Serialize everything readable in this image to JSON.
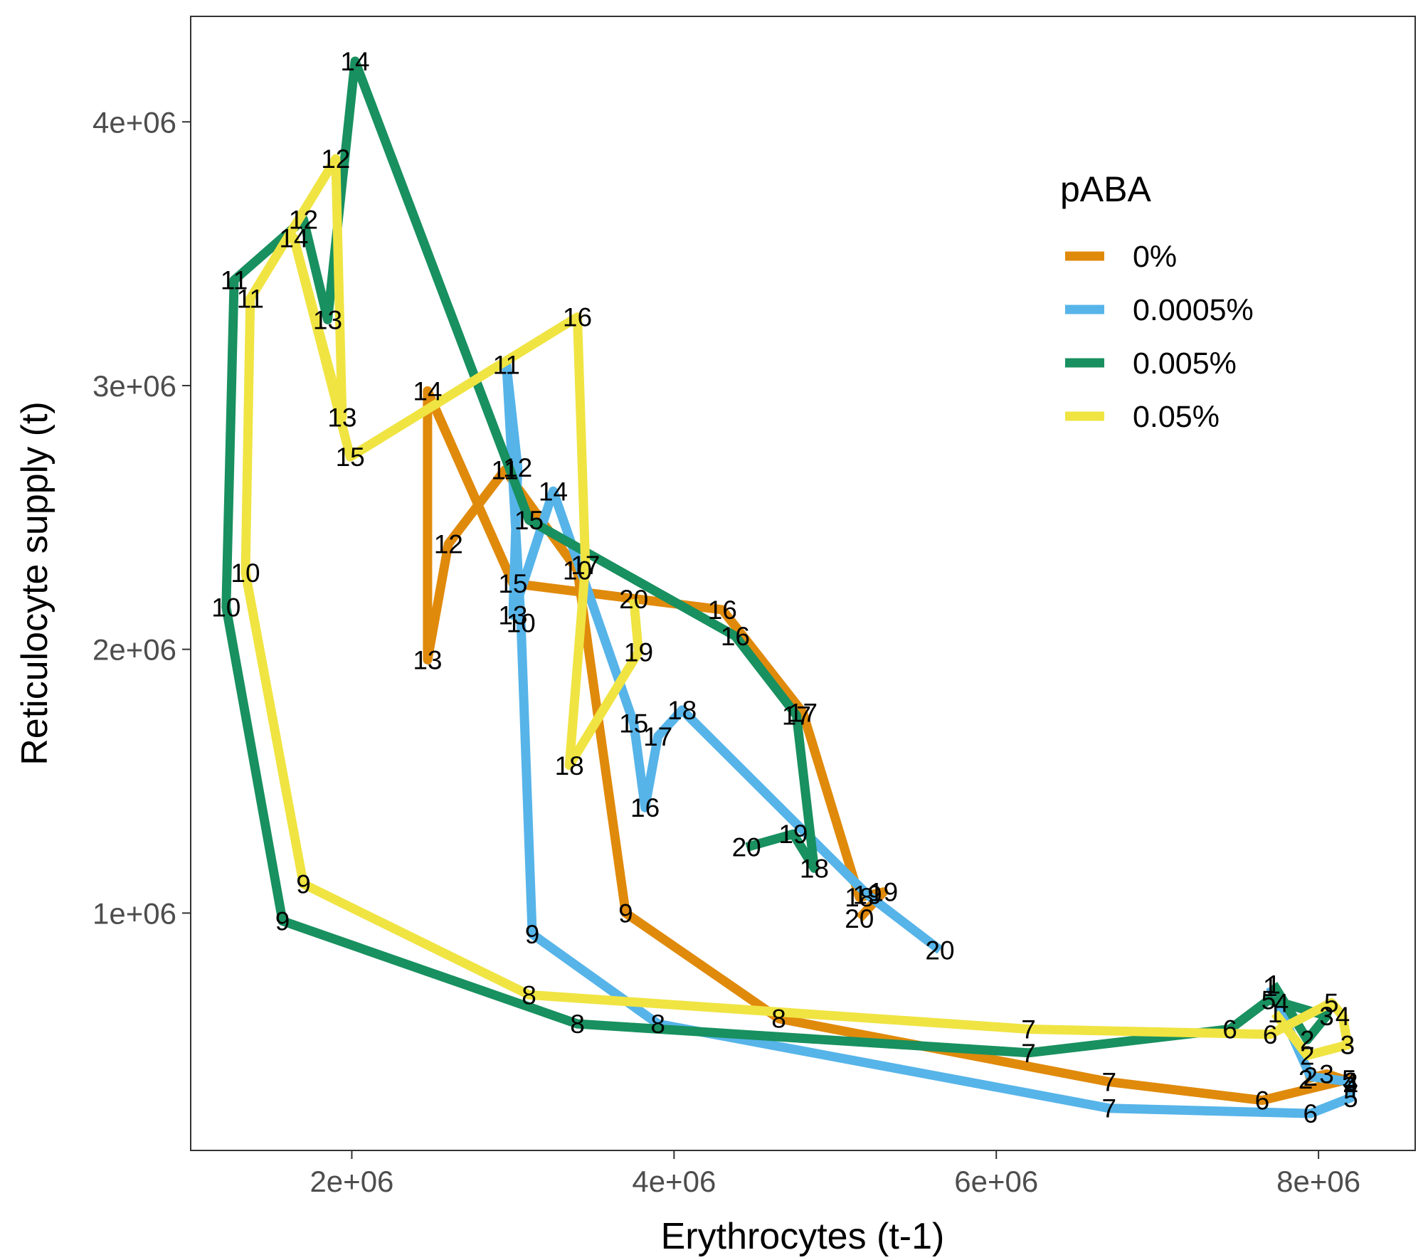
{
  "chart_data": {
    "type": "line",
    "xlabel": "Erythrocytes (t-1)",
    "ylabel": "Reticulocyte supply (t)",
    "xlim": [
      1000000,
      8600000
    ],
    "ylim": [
      100000,
      4400000
    ],
    "x_ticks": [
      2000000,
      4000000,
      6000000,
      8000000
    ],
    "x_tick_labels": [
      "2e+06",
      "4e+06",
      "6e+06",
      "8e+06"
    ],
    "y_ticks": [
      1000000,
      2000000,
      3000000,
      4000000
    ],
    "y_tick_labels": [
      "1e+06",
      "2e+06",
      "3e+06",
      "4e+06"
    ],
    "grid": false,
    "legend": {
      "title": "pABA",
      "position": "right-top-inside"
    },
    "series": [
      {
        "name": "0%",
        "color": "#E08A0B",
        "points": [
          {
            "label": "2",
            "x": 7920000,
            "y": 370000
          },
          {
            "label": "3",
            "x": 8050000,
            "y": 390000
          },
          {
            "label": "4",
            "x": 8200000,
            "y": 360000
          },
          {
            "label": "5",
            "x": 8190000,
            "y": 370000
          },
          {
            "label": "6",
            "x": 7650000,
            "y": 290000
          },
          {
            "label": "7",
            "x": 6700000,
            "y": 360000
          },
          {
            "label": "8",
            "x": 4650000,
            "y": 600000
          },
          {
            "label": "9",
            "x": 3700000,
            "y": 1000000
          },
          {
            "label": "10",
            "x": 3400000,
            "y": 2300000
          },
          {
            "label": "11",
            "x": 2950000,
            "y": 2680000
          },
          {
            "label": "12",
            "x": 2600000,
            "y": 2400000
          },
          {
            "label": "13",
            "x": 2470000,
            "y": 1960000
          },
          {
            "label": "14",
            "x": 2470000,
            "y": 2980000
          },
          {
            "label": "15",
            "x": 3000000,
            "y": 2250000
          },
          {
            "label": "16",
            "x": 4300000,
            "y": 2150000
          },
          {
            "label": "17",
            "x": 4800000,
            "y": 1760000
          },
          {
            "label": "18",
            "x": 5150000,
            "y": 1060000
          },
          {
            "label": "19",
            "x": 5300000,
            "y": 1080000
          },
          {
            "label": "20",
            "x": 5150000,
            "y": 980000
          }
        ]
      },
      {
        "name": "0.0005%",
        "color": "#56B4E9",
        "points": [
          {
            "label": "1",
            "x": 7700000,
            "y": 720000
          },
          {
            "label": "2",
            "x": 7950000,
            "y": 380000
          },
          {
            "label": "3",
            "x": 8200000,
            "y": 360000
          },
          {
            "label": "4",
            "x": 8200000,
            "y": 340000
          },
          {
            "label": "5",
            "x": 8200000,
            "y": 300000
          },
          {
            "label": "6",
            "x": 7950000,
            "y": 240000
          },
          {
            "label": "7",
            "x": 6700000,
            "y": 260000
          },
          {
            "label": "8",
            "x": 3900000,
            "y": 580000
          },
          {
            "label": "9",
            "x": 3120000,
            "y": 920000
          },
          {
            "label": "10",
            "x": 3050000,
            "y": 2100000
          },
          {
            "label": "11",
            "x": 2960000,
            "y": 3080000
          },
          {
            "label": "12",
            "x": 3030000,
            "y": 2690000
          },
          {
            "label": "13",
            "x": 3000000,
            "y": 2130000
          },
          {
            "label": "14",
            "x": 3250000,
            "y": 2600000
          },
          {
            "label": "15",
            "x": 3750000,
            "y": 1720000
          },
          {
            "label": "16",
            "x": 3820000,
            "y": 1400000
          },
          {
            "label": "17",
            "x": 3900000,
            "y": 1670000
          },
          {
            "label": "18",
            "x": 4050000,
            "y": 1770000
          },
          {
            "label": "19",
            "x": 5200000,
            "y": 1070000
          },
          {
            "label": "20",
            "x": 5650000,
            "y": 860000
          }
        ]
      },
      {
        "name": "0.005%",
        "color": "#18905F",
        "points": [
          {
            "label": "1",
            "x": 7720000,
            "y": 730000
          },
          {
            "label": "2",
            "x": 7930000,
            "y": 520000
          },
          {
            "label": "3",
            "x": 8050000,
            "y": 610000
          },
          {
            "label": "4",
            "x": 7770000,
            "y": 660000
          },
          {
            "label": "5",
            "x": 7690000,
            "y": 670000
          },
          {
            "label": "6",
            "x": 7450000,
            "y": 560000
          },
          {
            "label": "7",
            "x": 6200000,
            "y": 470000
          },
          {
            "label": "8",
            "x": 3400000,
            "y": 580000
          },
          {
            "label": "9",
            "x": 1570000,
            "y": 970000
          },
          {
            "label": "10",
            "x": 1220000,
            "y": 2160000
          },
          {
            "label": "11",
            "x": 1270000,
            "y": 3400000
          },
          {
            "label": "12",
            "x": 1700000,
            "y": 3630000
          },
          {
            "label": "13",
            "x": 1850000,
            "y": 3250000
          },
          {
            "label": "14",
            "x": 2020000,
            "y": 4230000
          },
          {
            "label": "15",
            "x": 3100000,
            "y": 2490000
          },
          {
            "label": "16",
            "x": 4380000,
            "y": 2050000
          },
          {
            "label": "17",
            "x": 4760000,
            "y": 1750000
          },
          {
            "label": "18",
            "x": 4870000,
            "y": 1170000
          },
          {
            "label": "19",
            "x": 4740000,
            "y": 1300000
          },
          {
            "label": "20",
            "x": 4450000,
            "y": 1250000
          }
        ]
      },
      {
        "name": "0.05%",
        "color": "#F0E442",
        "points": [
          {
            "label": "1",
            "x": 7730000,
            "y": 620000
          },
          {
            "label": "2",
            "x": 7930000,
            "y": 460000
          },
          {
            "label": "3",
            "x": 8180000,
            "y": 500000
          },
          {
            "label": "4",
            "x": 8150000,
            "y": 610000
          },
          {
            "label": "5",
            "x": 8080000,
            "y": 660000
          },
          {
            "label": "6",
            "x": 7700000,
            "y": 540000
          },
          {
            "label": "7",
            "x": 6200000,
            "y": 560000
          },
          {
            "label": "8",
            "x": 3100000,
            "y": 690000
          },
          {
            "label": "9",
            "x": 1700000,
            "y": 1110000
          },
          {
            "label": "10",
            "x": 1340000,
            "y": 2290000
          },
          {
            "label": "11",
            "x": 1370000,
            "y": 3330000
          },
          {
            "label": "12",
            "x": 1900000,
            "y": 3860000
          },
          {
            "label": "13",
            "x": 1940000,
            "y": 2880000
          },
          {
            "label": "14",
            "x": 1640000,
            "y": 3560000
          },
          {
            "label": "15",
            "x": 1990000,
            "y": 2730000
          },
          {
            "label": "16",
            "x": 3400000,
            "y": 3260000
          },
          {
            "label": "17",
            "x": 3450000,
            "y": 2320000
          },
          {
            "label": "18",
            "x": 3350000,
            "y": 1560000
          },
          {
            "label": "19",
            "x": 3780000,
            "y": 1990000
          },
          {
            "label": "20",
            "x": 3750000,
            "y": 2190000
          }
        ]
      }
    ]
  }
}
